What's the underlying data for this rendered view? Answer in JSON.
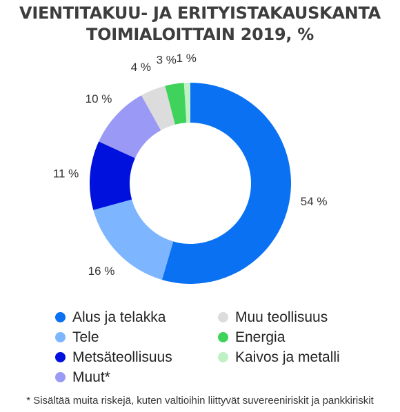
{
  "title_line1": "VIENTITAKUU- JA ERITYISTAKAUSKANTA",
  "title_line2": "TOIMIALOITTAIN 2019, %",
  "chart_data": {
    "type": "pie",
    "variant": "donut",
    "categories": [
      "Alus ja telakka",
      "Tele",
      "Metsäteollisuus",
      "Muut*",
      "Muu teollisuus",
      "Energia",
      "Kaivos ja metalli"
    ],
    "values": [
      54,
      16,
      11,
      10,
      4,
      3,
      1
    ],
    "data_labels": [
      "54 %",
      "16 %",
      "11 %",
      "10 %",
      "4 %",
      "3 %",
      "1 %"
    ],
    "colors": [
      "#0a72f2",
      "#7db6ff",
      "#0011dd",
      "#9a9af6",
      "#dcdcdc",
      "#3fd35c",
      "#bff0c6"
    ],
    "legend_position": "bottom"
  },
  "footnote": "* Sisältää muita riskejä, kuten valtioihin liittyvät suvereeniriskit ja pankkiriskit"
}
